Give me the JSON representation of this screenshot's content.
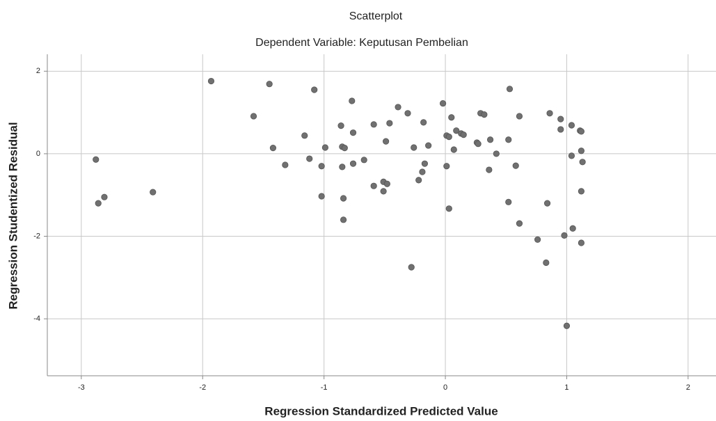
{
  "chart_data": {
    "type": "scatter",
    "title": "Scatterplot",
    "subtitle": "Dependent Variable: Keputusan Pembelian",
    "x_label": "Regression Standardized Predicted Value",
    "y_label": "Regression Studentized Residual",
    "x": [
      -2.88,
      -2.86,
      -2.81,
      -2.41,
      -1.93,
      -1.58,
      -1.45,
      -1.42,
      -1.32,
      -1.16,
      -1.12,
      -1.08,
      -1.02,
      -1.02,
      -0.99,
      -0.86,
      -0.85,
      -0.83,
      -0.85,
      -0.84,
      -0.77,
      -0.76,
      -0.76,
      -0.84,
      -0.67,
      -0.59,
      -0.59,
      -0.51,
      -0.51,
      -0.48,
      -0.49,
      -0.46,
      -0.39,
      -0.31,
      -0.26,
      -0.28,
      -0.22,
      -0.18,
      -0.19,
      -0.17,
      -0.14,
      -0.02,
      0.01,
      0.01,
      0.03,
      0.03,
      0.05,
      0.07,
      0.09,
      0.13,
      0.15,
      0.26,
      0.27,
      0.29,
      0.32,
      0.36,
      0.37,
      0.42,
      0.52,
      0.52,
      0.53,
      0.58,
      0.61,
      0.61,
      0.76,
      0.83,
      0.84,
      0.86,
      0.95,
      0.95,
      0.98,
      1.0,
      1.04,
      1.04,
      1.05,
      1.11,
      1.12,
      1.12,
      1.12,
      1.12,
      1.13
    ],
    "values": [
      -0.14,
      -1.2,
      -1.05,
      -0.93,
      1.76,
      0.91,
      1.69,
      0.14,
      -0.27,
      0.44,
      -0.12,
      1.55,
      -0.3,
      -1.03,
      0.15,
      0.68,
      0.17,
      0.14,
      -0.32,
      -1.08,
      1.28,
      0.51,
      -0.24,
      -1.6,
      -0.15,
      0.71,
      -0.78,
      -0.91,
      -0.68,
      -0.73,
      0.3,
      0.74,
      1.13,
      0.98,
      0.15,
      -2.75,
      -0.64,
      0.76,
      -0.44,
      -0.24,
      0.2,
      1.22,
      -0.3,
      0.44,
      0.41,
      -1.33,
      0.88,
      0.1,
      0.56,
      0.49,
      0.46,
      0.27,
      0.24,
      0.98,
      0.95,
      -0.39,
      0.34,
      0.0,
      0.34,
      -1.17,
      1.57,
      -0.29,
      -1.69,
      0.91,
      -2.08,
      -2.64,
      -1.2,
      0.98,
      0.84,
      0.59,
      -1.98,
      -4.17,
      0.69,
      -0.05,
      -1.81,
      0.56,
      0.54,
      -0.91,
      -2.16,
      0.07,
      -0.2
    ],
    "color": "#707070",
    "xlim": [
      -3.28,
      2.23
    ],
    "xticks": [
      -3,
      -2,
      -1,
      0,
      1,
      2
    ],
    "ylim": [
      -5.38,
      2.41
    ],
    "yticks": [
      2,
      0,
      -2,
      -4
    ],
    "grid": true
  }
}
